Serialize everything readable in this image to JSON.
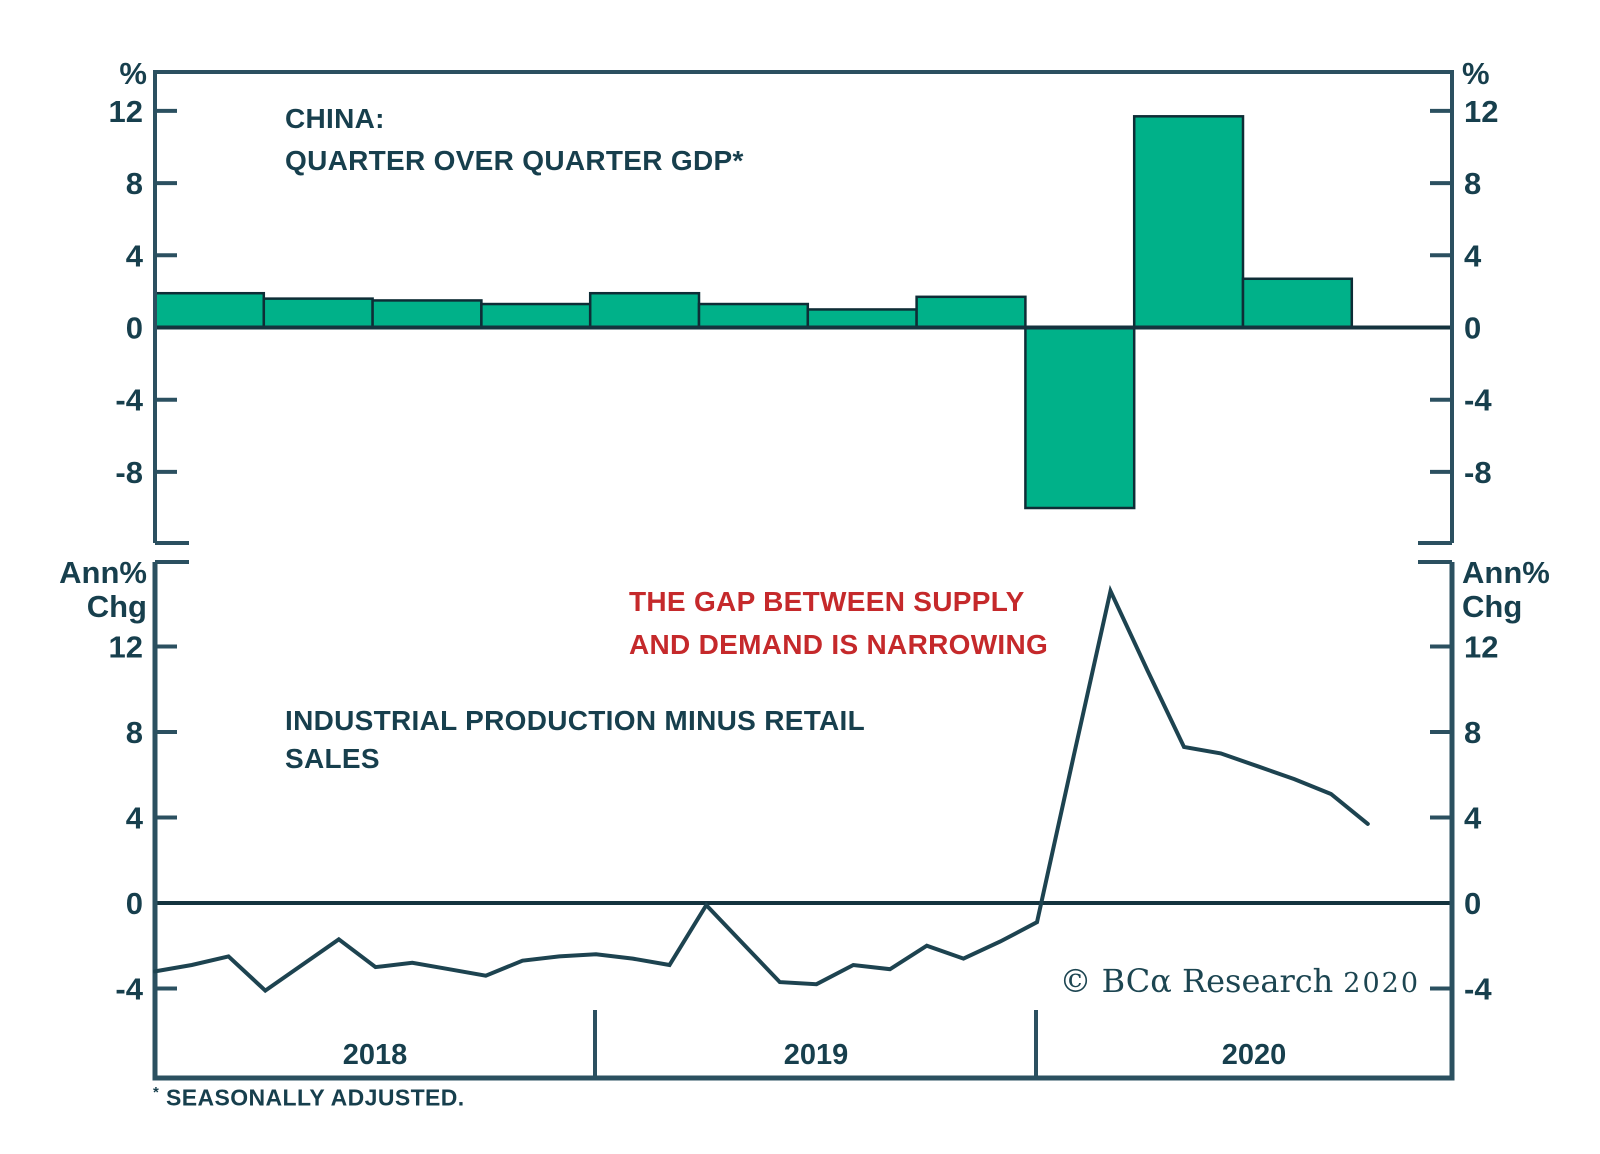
{
  "colors": {
    "background": "#FFFFFF",
    "bar_fill": "#00B189",
    "bar_stroke": "#0E2D36",
    "line": "#1D4350",
    "axis": "#2B5060",
    "zero_line": "#14333E",
    "text": "#173F4D",
    "annotation_red": "#C5292B",
    "copyright": "#1C4551"
  },
  "axes": {
    "top_unit": "%",
    "bottom_unit_line1": "Ann%",
    "bottom_unit_line2": "Chg",
    "top_yticks": [
      12,
      8,
      4,
      0,
      -4,
      -8
    ],
    "bottom_yticks": [
      12,
      8,
      4,
      0,
      -4
    ]
  },
  "x_axis": {
    "year_labels": [
      "2018",
      "2019",
      "2020"
    ]
  },
  "titles": {
    "top_line1": "CHINA:",
    "top_line2": "QUARTER OVER QUARTER GDP*",
    "annotation_line1": "THE GAP BETWEEN SUPPLY",
    "annotation_line2": "AND DEMAND IS NARROWING",
    "series_label_line1": "INDUSTRIAL PRODUCTION MINUS RETAIL",
    "series_label_line2": "SALES"
  },
  "footnote": {
    "star": "*",
    "text": "SEASONALLY ADJUSTED."
  },
  "copyright": {
    "text": "© BCα Research",
    "year": "2020"
  },
  "chart_data": [
    {
      "id": "china-qoq-gdp",
      "type": "bar",
      "title": "CHINA: QUARTER OVER QUARTER GDP*",
      "ylabel": "%",
      "ylim": [
        -12.2,
        14.1
      ],
      "yticks": [
        12,
        8,
        4,
        0,
        -4,
        -8
      ],
      "grid": false,
      "categories": [
        "2018 Q1",
        "2018 Q2",
        "2018 Q3",
        "2018 Q4",
        "2019 Q1",
        "2019 Q2",
        "2019 Q3",
        "2019 Q4",
        "2020 Q1",
        "2020 Q2",
        "2020 Q3"
      ],
      "values": [
        1.9,
        1.6,
        1.5,
        1.3,
        1.9,
        1.3,
        1.0,
        1.7,
        -10.0,
        11.7,
        2.7
      ]
    },
    {
      "id": "industrial-production-minus-retail-sales",
      "type": "line",
      "title": "INDUSTRIAL PRODUCTION MINUS RETAIL SALES",
      "ylabel": "Ann% Chg",
      "ylim": [
        -8.2,
        16.0
      ],
      "yticks": [
        12,
        8,
        4,
        0,
        -4
      ],
      "grid": false,
      "annotation": "THE GAP BETWEEN SUPPLY AND DEMAND IS NARROWING",
      "x": [
        "2018-01",
        "2018-02",
        "2018-03",
        "2018-04",
        "2018-05",
        "2018-06",
        "2018-07",
        "2018-08",
        "2018-09",
        "2018-10",
        "2018-11",
        "2018-12",
        "2019-01",
        "2019-02",
        "2019-03",
        "2019-04",
        "2019-05",
        "2019-06",
        "2019-07",
        "2019-08",
        "2019-09",
        "2019-10",
        "2019-11",
        "2019-12",
        "2020-01",
        "2020-02",
        "2020-03",
        "2020-04",
        "2020-05",
        "2020-06",
        "2020-07",
        "2020-08",
        "2020-09",
        "2020-10"
      ],
      "values": [
        -3.2,
        -2.9,
        -2.5,
        -4.1,
        -2.9,
        -1.7,
        -3.0,
        -2.8,
        -3.1,
        -3.4,
        -2.7,
        -2.5,
        -2.4,
        -2.6,
        -2.9,
        -0.1,
        -1.9,
        -3.7,
        -3.8,
        -2.9,
        -3.1,
        -2.0,
        -2.6,
        -1.8,
        -0.9,
        6.9,
        14.6,
        10.9,
        7.3,
        7.0,
        6.4,
        5.8,
        5.1,
        3.7
      ]
    }
  ]
}
